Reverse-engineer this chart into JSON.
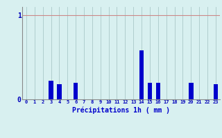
{
  "categories": [
    0,
    1,
    2,
    3,
    4,
    5,
    6,
    7,
    8,
    9,
    10,
    11,
    12,
    13,
    14,
    15,
    16,
    17,
    18,
    19,
    20,
    21,
    22,
    23
  ],
  "values": [
    0,
    0,
    0,
    0.22,
    0.18,
    0,
    0.2,
    0,
    0,
    0,
    0,
    0,
    0,
    0,
    0.58,
    0.2,
    0.2,
    0,
    0,
    0,
    0.2,
    0,
    0,
    0.18
  ],
  "bar_color": "#0000cc",
  "background_color": "#d8f0f0",
  "grid_color_h": "#cc8888",
  "grid_color_v": "#aac8c8",
  "xlabel": "Précipitations 1h ( mm )",
  "xlabel_color": "#0000cc",
  "tick_color": "#0000bb",
  "ylim": [
    0,
    1.1
  ],
  "yticks": [
    0,
    1
  ],
  "xlim": [
    -0.5,
    23.5
  ]
}
